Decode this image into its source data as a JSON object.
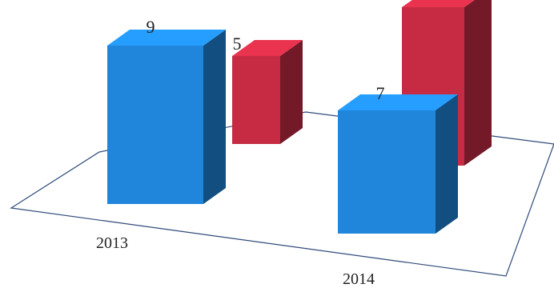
{
  "chart_data": {
    "type": "bar",
    "three_d": true,
    "categories": [
      "2013",
      "2014"
    ],
    "series": [
      {
        "values": [
          9,
          7
        ],
        "color": "#1f86dc"
      },
      {
        "values": [
          5,
          9
        ],
        "color": "#c62b43"
      }
    ],
    "data_labels": true,
    "title": "",
    "xlabel": "",
    "ylabel": "",
    "legend": "none",
    "grid": false
  }
}
